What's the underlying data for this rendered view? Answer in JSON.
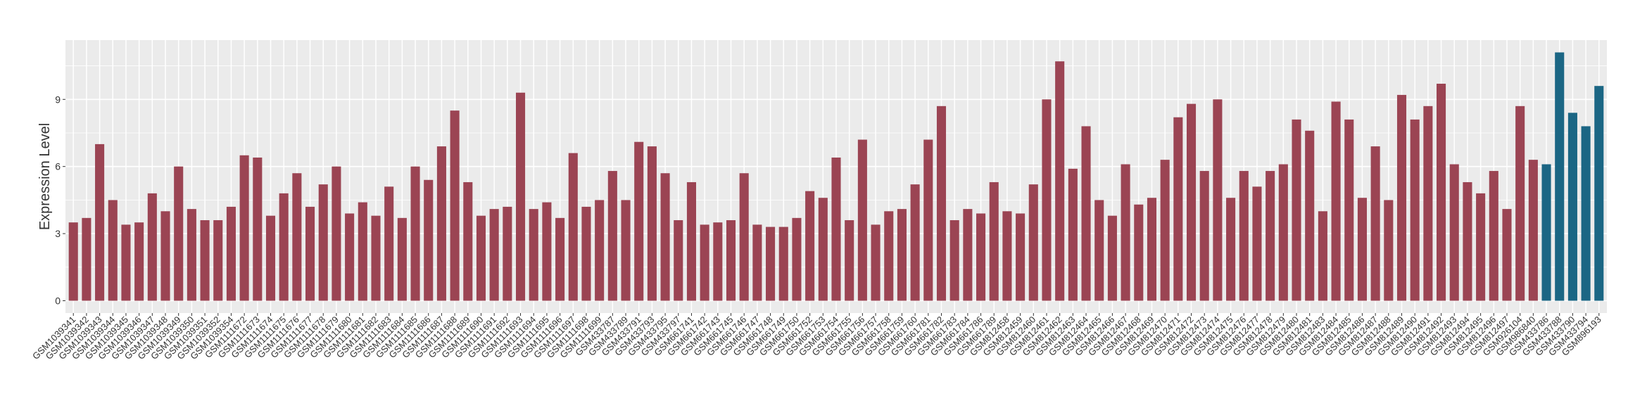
{
  "chart_data": {
    "type": "bar",
    "y_label": "Expression Level",
    "categories": [
      "GSM1039341",
      "GSM1039342",
      "GSM1039343",
      "GSM1039344",
      "GSM1039345",
      "GSM1039346",
      "GSM1039347",
      "GSM1039348",
      "GSM1039349",
      "GSM1039350",
      "GSM1039351",
      "GSM1039352",
      "GSM1039354",
      "GSM1111672",
      "GSM1111673",
      "GSM1111674",
      "GSM1111675",
      "GSM1111676",
      "GSM1111677",
      "GSM1111678",
      "GSM1111679",
      "GSM1111680",
      "GSM1111681",
      "GSM1111682",
      "GSM1111683",
      "GSM1111684",
      "GSM1111685",
      "GSM1111686",
      "GSM1111687",
      "GSM1111688",
      "GSM1111689",
      "GSM1111690",
      "GSM1111691",
      "GSM1111692",
      "GSM1111693",
      "GSM1111694",
      "GSM1111695",
      "GSM1111696",
      "GSM1111697",
      "GSM1111698",
      "GSM1111699",
      "GSM433787",
      "GSM433789",
      "GSM433791",
      "GSM433793",
      "GSM433795",
      "GSM433797",
      "GSM661741",
      "GSM661742",
      "GSM661743",
      "GSM661745",
      "GSM661746",
      "GSM661747",
      "GSM661748",
      "GSM661749",
      "GSM661750",
      "GSM661752",
      "GSM661753",
      "GSM661754",
      "GSM661755",
      "GSM661756",
      "GSM661757",
      "GSM661758",
      "GSM661759",
      "GSM661760",
      "GSM661781",
      "GSM661782",
      "GSM661783",
      "GSM661784",
      "GSM661786",
      "GSM661789",
      "GSM812458",
      "GSM812459",
      "GSM812460",
      "GSM812461",
      "GSM812462",
      "GSM812463",
      "GSM812464",
      "GSM812465",
      "GSM812466",
      "GSM812467",
      "GSM812468",
      "GSM812469",
      "GSM812470",
      "GSM812471",
      "GSM812472",
      "GSM812473",
      "GSM812474",
      "GSM812475",
      "GSM812476",
      "GSM812477",
      "GSM812478",
      "GSM812479",
      "GSM812480",
      "GSM812481",
      "GSM812483",
      "GSM812484",
      "GSM812485",
      "GSM812486",
      "GSM812487",
      "GSM812488",
      "GSM812489",
      "GSM812490",
      "GSM812491",
      "GSM812492",
      "GSM812493",
      "GSM812494",
      "GSM812495",
      "GSM812496",
      "GSM812497",
      "GSM926104",
      "GSM986840",
      "GSM433786",
      "GSM433788",
      "GSM433790",
      "GSM433794",
      "GSM896193"
    ],
    "values": [
      3.5,
      3.7,
      7.0,
      4.5,
      3.4,
      3.5,
      4.8,
      4.0,
      6.0,
      4.1,
      3.6,
      3.6,
      4.2,
      6.5,
      6.4,
      3.8,
      4.8,
      5.7,
      4.2,
      5.2,
      6.0,
      3.9,
      4.4,
      3.8,
      5.1,
      3.7,
      6.0,
      5.4,
      6.9,
      8.5,
      5.3,
      3.8,
      4.1,
      4.2,
      9.3,
      4.1,
      4.4,
      3.7,
      6.6,
      4.2,
      4.5,
      5.8,
      4.5,
      7.1,
      6.9,
      5.7,
      3.6,
      5.3,
      3.4,
      3.5,
      3.6,
      5.7,
      3.4,
      3.3,
      3.3,
      3.7,
      4.9,
      4.6,
      6.4,
      3.6,
      7.2,
      3.4,
      4.0,
      4.1,
      5.2,
      7.2,
      8.7,
      3.6,
      4.1,
      3.9,
      5.3,
      4.0,
      3.9,
      5.2,
      9.0,
      10.7,
      5.9,
      7.8,
      4.5,
      3.8,
      6.1,
      4.3,
      4.6,
      6.3,
      8.2,
      8.8,
      5.8,
      9.0,
      4.6,
      5.8,
      5.1,
      5.8,
      6.1,
      8.1,
      7.6,
      4.0,
      8.9,
      8.1,
      4.6,
      6.9,
      4.5,
      9.2,
      8.1,
      8.7,
      9.7,
      6.1,
      5.3,
      4.8,
      5.8,
      4.1,
      8.7,
      6.3,
      6.1,
      11.1,
      8.4,
      7.8,
      9.6
    ],
    "colors": [
      "#9b4453",
      "#9b4453",
      "#9b4453",
      "#9b4453",
      "#9b4453",
      "#9b4453",
      "#9b4453",
      "#9b4453",
      "#9b4453",
      "#9b4453",
      "#9b4453",
      "#9b4453",
      "#9b4453",
      "#9b4453",
      "#9b4453",
      "#9b4453",
      "#9b4453",
      "#9b4453",
      "#9b4453",
      "#9b4453",
      "#9b4453",
      "#9b4453",
      "#9b4453",
      "#9b4453",
      "#9b4453",
      "#9b4453",
      "#9b4453",
      "#9b4453",
      "#9b4453",
      "#9b4453",
      "#9b4453",
      "#9b4453",
      "#9b4453",
      "#9b4453",
      "#9b4453",
      "#9b4453",
      "#9b4453",
      "#9b4453",
      "#9b4453",
      "#9b4453",
      "#9b4453",
      "#9b4453",
      "#9b4453",
      "#9b4453",
      "#9b4453",
      "#9b4453",
      "#9b4453",
      "#9b4453",
      "#9b4453",
      "#9b4453",
      "#9b4453",
      "#9b4453",
      "#9b4453",
      "#9b4453",
      "#9b4453",
      "#9b4453",
      "#9b4453",
      "#9b4453",
      "#9b4453",
      "#9b4453",
      "#9b4453",
      "#9b4453",
      "#9b4453",
      "#9b4453",
      "#9b4453",
      "#9b4453",
      "#9b4453",
      "#9b4453",
      "#9b4453",
      "#9b4453",
      "#9b4453",
      "#9b4453",
      "#9b4453",
      "#9b4453",
      "#9b4453",
      "#9b4453",
      "#9b4453",
      "#9b4453",
      "#9b4453",
      "#9b4453",
      "#9b4453",
      "#9b4453",
      "#9b4453",
      "#9b4453",
      "#9b4453",
      "#9b4453",
      "#9b4453",
      "#9b4453",
      "#9b4453",
      "#9b4453",
      "#9b4453",
      "#9b4453",
      "#9b4453",
      "#9b4453",
      "#9b4453",
      "#9b4453",
      "#9b4453",
      "#9b4453",
      "#9b4453",
      "#9b4453",
      "#9b4453",
      "#9b4453",
      "#9b4453",
      "#9b4453",
      "#9b4453",
      "#9b4453",
      "#9b4453",
      "#9b4453",
      "#9b4453",
      "#9b4453",
      "#9b4453",
      "#9b4453",
      "#1b6684",
      "#1b6684",
      "#1b6684",
      "#1b6684",
      "#1b6684"
    ],
    "ylim": [
      -0.55,
      11.65
    ],
    "yticks": [
      0,
      3,
      6,
      9
    ],
    "grid": true,
    "panel_color": "#ebebeb"
  }
}
